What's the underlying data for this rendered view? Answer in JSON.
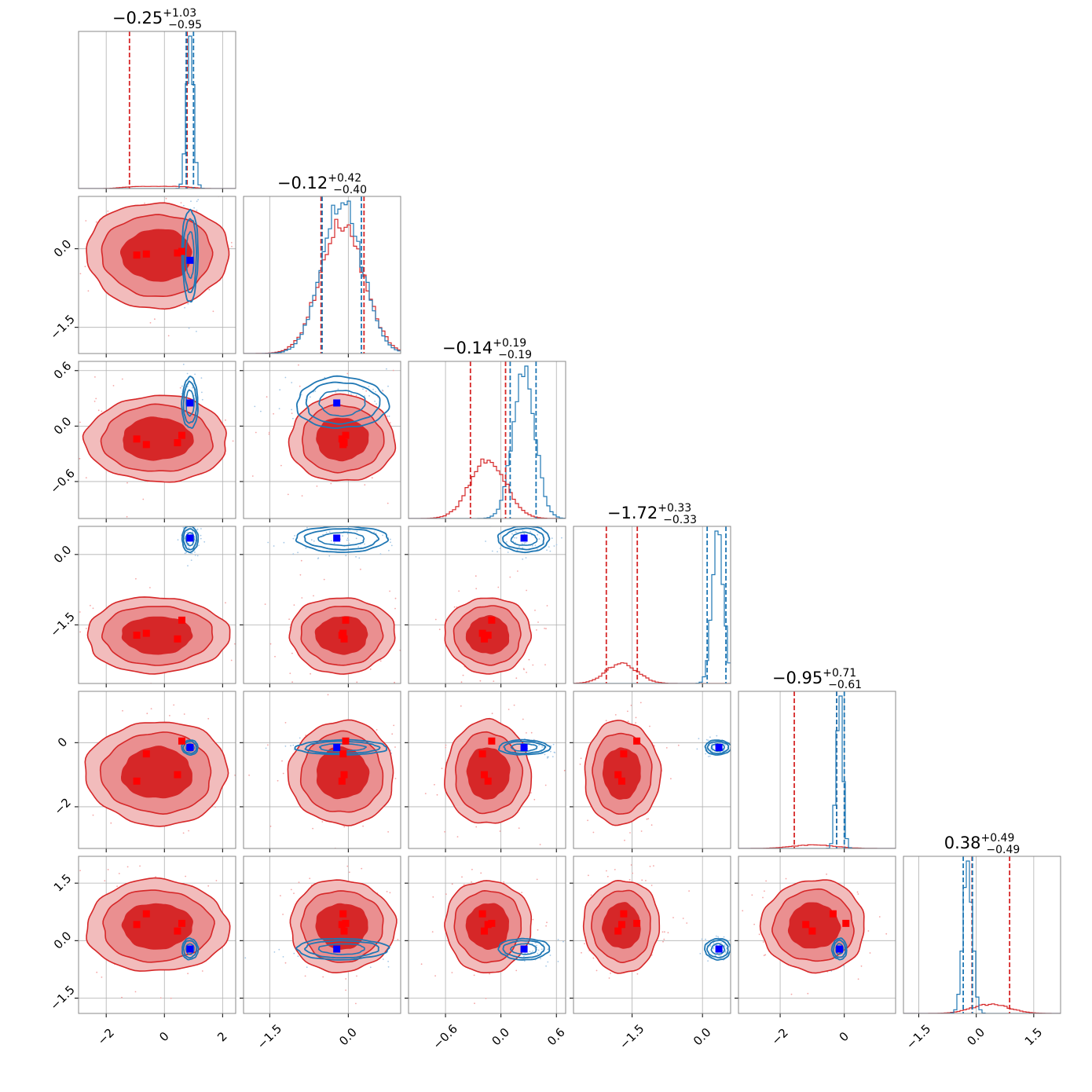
{
  "chart_data": {
    "type": "corner",
    "n_params": 6,
    "grid": true,
    "colors": {
      "series_a": "#d62728",
      "series_b": "#1f77b4",
      "truth_a": "#ff0000",
      "truth_b": "#0000ff",
      "frame": "#888888",
      "grid": "#b0b0b0"
    },
    "params": [
      {
        "range": [
          -2.95,
          2.45
        ],
        "ticks": [
          -2,
          0,
          2
        ],
        "tick_labels": [
          "−2",
          "0",
          "2"
        ],
        "title": {
          "main": "−0.25",
          "plus": "+1.03",
          "minus": "−0.95"
        },
        "a": {
          "mean": -0.25,
          "sd": 1.05,
          "shape": "flat",
          "q": [
            -1.2,
            0.78
          ]
        },
        "b": {
          "mean": 0.88,
          "sd": 0.12,
          "q": [
            0.75,
            1.0
          ]
        }
      },
      {
        "range": [
          -2.0,
          1.0
        ],
        "ticks": [
          -1.5,
          0.0
        ],
        "tick_labels": [
          "−1.5",
          "0.0"
        ],
        "title": {
          "main": "−0.12",
          "plus": "+0.42",
          "minus": "−0.40"
        },
        "a": {
          "mean": -0.12,
          "sd": 0.41,
          "shape": "normal",
          "q": [
            -0.52,
            0.3
          ]
        },
        "b": {
          "mean": -0.12,
          "sd": 0.38,
          "q": [
            -0.5,
            0.25
          ]
        }
      },
      {
        "range": [
          -1.0,
          0.7
        ],
        "ticks": [
          -0.6,
          0.0,
          0.6
        ],
        "tick_labels": [
          "−0.6",
          "0.0",
          "0.6"
        ],
        "title": {
          "main": "−0.14",
          "plus": "+0.19",
          "minus": "−0.19"
        },
        "a": {
          "mean": -0.14,
          "sd": 0.19,
          "shape": "normal",
          "q": [
            -0.33,
            0.05
          ]
        },
        "b": {
          "mean": 0.25,
          "sd": 0.12,
          "q": [
            0.1,
            0.38
          ]
        }
      },
      {
        "range": [
          -2.75,
          0.6
        ],
        "ticks": [
          -1.5,
          0.0
        ],
        "tick_labels": [
          "−1.5",
          "0.0"
        ],
        "title": {
          "main": "−1.72",
          "plus": "+0.33",
          "minus": "−0.33"
        },
        "a": {
          "mean": -1.72,
          "sd": 0.33,
          "shape": "normal",
          "q": [
            -2.05,
            -1.39
          ]
        },
        "b": {
          "mean": 0.33,
          "sd": 0.12,
          "q": [
            0.1,
            0.5
          ]
        }
      },
      {
        "range": [
          -3.3,
          1.6
        ],
        "ticks": [
          -2,
          0
        ],
        "tick_labels": [
          "−2",
          "0"
        ],
        "title": {
          "main": "−0.95",
          "plus": "+0.71",
          "minus": "−0.61"
        },
        "a": {
          "mean": -0.95,
          "sd": 0.66,
          "shape": "normal",
          "q": [
            -1.56,
            -0.24
          ]
        },
        "b": {
          "mean": -0.15,
          "sd": 0.1,
          "q": [
            -0.24,
            0.0
          ]
        }
      },
      {
        "range": [
          -1.9,
          2.2
        ],
        "ticks": [
          -1.5,
          0.0,
          1.5
        ],
        "tick_labels": [
          "−1.5",
          "0.0",
          "1.5"
        ],
        "title": {
          "main": "0.38",
          "plus": "+0.49",
          "minus": "−0.49"
        },
        "a": {
          "mean": 0.38,
          "sd": 0.49,
          "shape": "normal",
          "q": [
            -0.11,
            0.87
          ]
        },
        "b": {
          "mean": -0.22,
          "sd": 0.12,
          "q": [
            -0.34,
            -0.1
          ]
        }
      }
    ],
    "truths_a": [
      [
        -0.95,
        -0.12,
        -0.14,
        -1.72,
        -1.2,
        0.42
      ],
      [
        -0.62,
        -0.1,
        -0.2,
        -1.68,
        -0.35,
        0.7
      ],
      [
        0.6,
        -0.05,
        -0.1,
        -1.4,
        0.05,
        0.45
      ],
      [
        0.45,
        -0.08,
        -0.18,
        -1.8,
        -1.0,
        0.25
      ]
    ],
    "truth_b": [
      0.88,
      -0.22,
      0.25,
      0.35,
      -0.15,
      -0.22
    ]
  }
}
